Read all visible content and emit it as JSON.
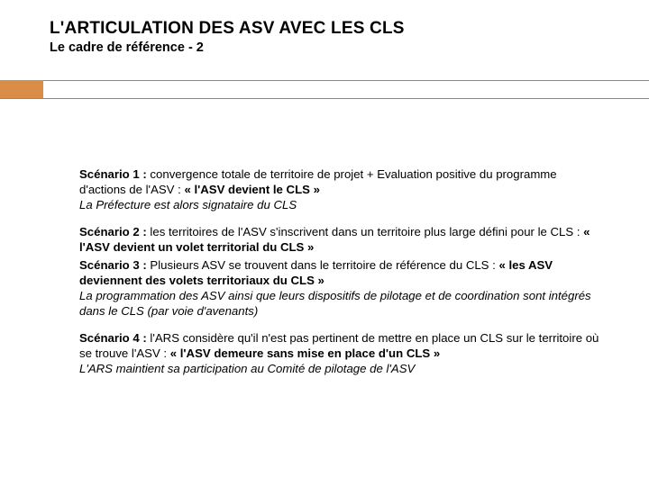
{
  "header": {
    "title": "L'ARTICULATION DES ASV AVEC LES CLS",
    "subtitle": "Le cadre de référence - 2"
  },
  "accent": {
    "color": "#d98d46",
    "rule_color": "#888888"
  },
  "scenarios": {
    "s1": {
      "label": "Scénario 1 :",
      "body1": " convergence totale de territoire de projet + Evaluation positive du programme d'actions de l'ASV : ",
      "quote": "« l'ASV devient le CLS »",
      "ital": "La Préfecture est alors signataire du CLS"
    },
    "s2": {
      "label": "Scénario 2 :",
      "body1": " les territoires de l'ASV s'inscrivent dans un territoire plus large défini pour le CLS : ",
      "quote": "« l'ASV devient un volet territorial du CLS »"
    },
    "s3": {
      "label": "Scénario 3 :",
      "body1": " Plusieurs ASV se trouvent dans le territoire de référence du CLS : ",
      "quote": "« les ASV deviennent des volets territoriaux du CLS »",
      "ital": "La programmation des ASV ainsi que leurs dispositifs de pilotage et de coordination sont intégrés dans le CLS (par voie d'avenants)"
    },
    "s4": {
      "label": "Scénario 4 :",
      "body1": "  l'ARS considère qu'il n'est pas pertinent de mettre en place un CLS sur le territoire où se trouve l'ASV : ",
      "quote": "« l'ASV demeure sans mise en place d'un CLS »",
      "ital": "L'ARS maintient sa participation au Comité de pilotage de l'ASV"
    }
  },
  "typography": {
    "title_fontsize": 19,
    "subtitle_fontsize": 14.5,
    "body_fontsize": 13.2,
    "text_color": "#000000",
    "background_color": "#ffffff"
  }
}
